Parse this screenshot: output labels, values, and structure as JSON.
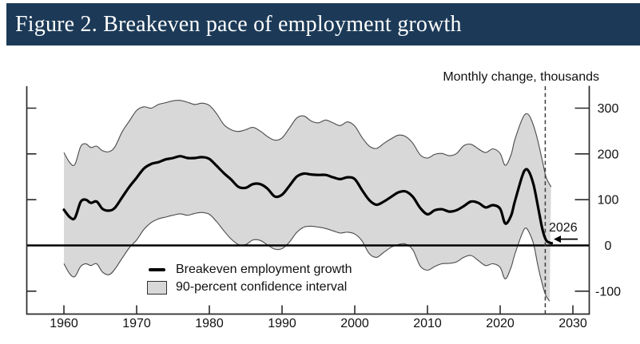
{
  "header": {
    "title": "Figure 2. Breakeven pace of employment growth"
  },
  "chart_data": {
    "type": "line",
    "title": "Figure 2. Breakeven pace of employment growth",
    "unit_label": "Monthly change, thousands",
    "xlabel": "",
    "ylabel": "Monthly change, thousands",
    "xlim": [
      1955,
      2032
    ],
    "ylim": [
      -150,
      330
    ],
    "x_ticks": [
      1960,
      1970,
      1980,
      1990,
      2000,
      2010,
      2020,
      2030
    ],
    "y_ticks": [
      300,
      200,
      100,
      0,
      -100
    ],
    "grid": false,
    "zero_line": true,
    "dashed_line_year": 2026.2,
    "legend": {
      "position": "lower-center-left",
      "line_label": "Breakeven employment growth",
      "band_label": "90-percent confidence interval"
    },
    "annotation": {
      "label": "2026",
      "arrow_points_to_year": 2026.8,
      "arrow_points_to_value": 5
    },
    "colors": {
      "header_bar": "#1c3a57",
      "line": "#000000",
      "band_fill": "#d8d8d8",
      "band_edge": "#4a4a4a",
      "axis": "#2b2b2b",
      "text": "#111111"
    },
    "series": {
      "breakeven": {
        "name": "Breakeven employment growth",
        "points": [
          [
            1960,
            78
          ],
          [
            1960.8,
            62
          ],
          [
            1961.5,
            60
          ],
          [
            1962.3,
            95
          ],
          [
            1963,
            100
          ],
          [
            1963.7,
            93
          ],
          [
            1964.5,
            96
          ],
          [
            1965.3,
            80
          ],
          [
            1966.2,
            76
          ],
          [
            1967,
            82
          ],
          [
            1968,
            105
          ],
          [
            1969,
            128
          ],
          [
            1970,
            148
          ],
          [
            1971,
            168
          ],
          [
            1972,
            178
          ],
          [
            1973,
            182
          ],
          [
            1974,
            188
          ],
          [
            1975,
            191
          ],
          [
            1976,
            195
          ],
          [
            1977,
            191
          ],
          [
            1978,
            191
          ],
          [
            1979,
            193
          ],
          [
            1980,
            189
          ],
          [
            1981,
            174
          ],
          [
            1982,
            158
          ],
          [
            1983,
            144
          ],
          [
            1984,
            128
          ],
          [
            1985,
            126
          ],
          [
            1986,
            134
          ],
          [
            1987,
            134
          ],
          [
            1988,
            124
          ],
          [
            1989,
            107
          ],
          [
            1990,
            111
          ],
          [
            1991,
            130
          ],
          [
            1992,
            150
          ],
          [
            1993,
            157
          ],
          [
            1994,
            155
          ],
          [
            1995,
            154
          ],
          [
            1996,
            154
          ],
          [
            1997,
            149
          ],
          [
            1998,
            145
          ],
          [
            1999,
            149
          ],
          [
            2000,
            145
          ],
          [
            2001,
            121
          ],
          [
            2002,
            99
          ],
          [
            2003,
            89
          ],
          [
            2004,
            96
          ],
          [
            2005,
            106
          ],
          [
            2006,
            116
          ],
          [
            2007,
            118
          ],
          [
            2008,
            106
          ],
          [
            2009,
            82
          ],
          [
            2010,
            68
          ],
          [
            2011,
            77
          ],
          [
            2012,
            79
          ],
          [
            2013,
            74
          ],
          [
            2014,
            77
          ],
          [
            2015,
            86
          ],
          [
            2016,
            96
          ],
          [
            2017,
            93
          ],
          [
            2018,
            83
          ],
          [
            2019,
            88
          ],
          [
            2020,
            80
          ],
          [
            2020.7,
            48
          ],
          [
            2021.5,
            65
          ],
          [
            2022,
            95
          ],
          [
            2023,
            150
          ],
          [
            2023.5,
            166
          ],
          [
            2024,
            160
          ],
          [
            2024.6,
            132
          ],
          [
            2025.2,
            85
          ],
          [
            2025.8,
            36
          ],
          [
            2026.3,
            12
          ],
          [
            2026.8,
            6
          ],
          [
            2027.1,
            5
          ]
        ]
      },
      "confidence_band": {
        "name": "90-percent confidence interval",
        "upper": [
          [
            1960,
            203
          ],
          [
            1960.8,
            181
          ],
          [
            1961.5,
            177
          ],
          [
            1962.3,
            216
          ],
          [
            1963,
            222
          ],
          [
            1963.7,
            214
          ],
          [
            1964.5,
            217
          ],
          [
            1965.3,
            207
          ],
          [
            1966.2,
            205
          ],
          [
            1967,
            215
          ],
          [
            1968,
            248
          ],
          [
            1969,
            272
          ],
          [
            1970,
            295
          ],
          [
            1971,
            303
          ],
          [
            1972,
            300
          ],
          [
            1973,
            308
          ],
          [
            1974,
            312
          ],
          [
            1975,
            316
          ],
          [
            1976,
            317
          ],
          [
            1977,
            313
          ],
          [
            1978,
            308
          ],
          [
            1979,
            311
          ],
          [
            1980,
            306
          ],
          [
            1981,
            288
          ],
          [
            1982,
            264
          ],
          [
            1983,
            253
          ],
          [
            1984,
            249
          ],
          [
            1985,
            253
          ],
          [
            1986,
            258
          ],
          [
            1987,
            250
          ],
          [
            1988,
            238
          ],
          [
            1989,
            230
          ],
          [
            1990,
            235
          ],
          [
            1991,
            256
          ],
          [
            1992,
            278
          ],
          [
            1993,
            283
          ],
          [
            1994,
            272
          ],
          [
            1995,
            268
          ],
          [
            1996,
            274
          ],
          [
            1997,
            268
          ],
          [
            1998,
            262
          ],
          [
            1999,
            270
          ],
          [
            2000,
            261
          ],
          [
            2001,
            236
          ],
          [
            2002,
            217
          ],
          [
            2003,
            212
          ],
          [
            2004,
            223
          ],
          [
            2005,
            233
          ],
          [
            2006,
            241
          ],
          [
            2007,
            238
          ],
          [
            2008,
            223
          ],
          [
            2009,
            198
          ],
          [
            2010,
            191
          ],
          [
            2011,
            199
          ],
          [
            2012,
            201
          ],
          [
            2013,
            196
          ],
          [
            2014,
            201
          ],
          [
            2015,
            218
          ],
          [
            2016,
            221
          ],
          [
            2017,
            211
          ],
          [
            2018,
            203
          ],
          [
            2019,
            211
          ],
          [
            2020,
            201
          ],
          [
            2020.7,
            175
          ],
          [
            2021.5,
            198
          ],
          [
            2022,
            230
          ],
          [
            2023,
            275
          ],
          [
            2023.6,
            288
          ],
          [
            2024.2,
            278
          ],
          [
            2025,
            240
          ],
          [
            2025.8,
            185
          ],
          [
            2026.3,
            150
          ],
          [
            2027,
            128
          ]
        ],
        "lower": [
          [
            1960,
            -40
          ],
          [
            1960.8,
            -62
          ],
          [
            1961.5,
            -68
          ],
          [
            1962.3,
            -46
          ],
          [
            1963,
            -40
          ],
          [
            1963.7,
            -44
          ],
          [
            1964.5,
            -40
          ],
          [
            1965.3,
            -58
          ],
          [
            1966.2,
            -64
          ],
          [
            1967,
            -52
          ],
          [
            1968,
            -28
          ],
          [
            1969,
            -5
          ],
          [
            1970,
            12
          ],
          [
            1971,
            35
          ],
          [
            1972,
            50
          ],
          [
            1973,
            58
          ],
          [
            1974,
            62
          ],
          [
            1975,
            66
          ],
          [
            1976,
            69
          ],
          [
            1977,
            66
          ],
          [
            1978,
            70
          ],
          [
            1979,
            72
          ],
          [
            1980,
            68
          ],
          [
            1981,
            52
          ],
          [
            1982,
            32
          ],
          [
            1983,
            14
          ],
          [
            1984,
            2
          ],
          [
            1985,
            2
          ],
          [
            1986,
            12
          ],
          [
            1987,
            11
          ],
          [
            1988,
            1
          ],
          [
            1989,
            -8
          ],
          [
            1990,
            -7
          ],
          [
            1991,
            7
          ],
          [
            1992,
            28
          ],
          [
            1993,
            40
          ],
          [
            1994,
            42
          ],
          [
            1995,
            40
          ],
          [
            1996,
            37
          ],
          [
            1997,
            32
          ],
          [
            1998,
            27
          ],
          [
            1999,
            29
          ],
          [
            2000,
            25
          ],
          [
            2001,
            10
          ],
          [
            2002,
            -18
          ],
          [
            2003,
            -26
          ],
          [
            2004,
            -15
          ],
          [
            2005,
            -4
          ],
          [
            2006,
            2
          ],
          [
            2007,
            3
          ],
          [
            2008,
            -10
          ],
          [
            2009,
            -45
          ],
          [
            2010,
            -54
          ],
          [
            2011,
            -46
          ],
          [
            2012,
            -40
          ],
          [
            2013,
            -39
          ],
          [
            2014,
            -36
          ],
          [
            2015,
            -26
          ],
          [
            2016,
            -22
          ],
          [
            2017,
            -33
          ],
          [
            2018,
            -44
          ],
          [
            2019,
            -40
          ],
          [
            2020,
            -48
          ],
          [
            2020.7,
            -73
          ],
          [
            2021.5,
            -48
          ],
          [
            2022,
            -20
          ],
          [
            2023,
            25
          ],
          [
            2023.5,
            38
          ],
          [
            2024,
            28
          ],
          [
            2024.6,
            3
          ],
          [
            2025.2,
            -45
          ],
          [
            2025.8,
            -85
          ],
          [
            2026.3,
            -110
          ],
          [
            2026.8,
            -122
          ]
        ]
      }
    }
  }
}
